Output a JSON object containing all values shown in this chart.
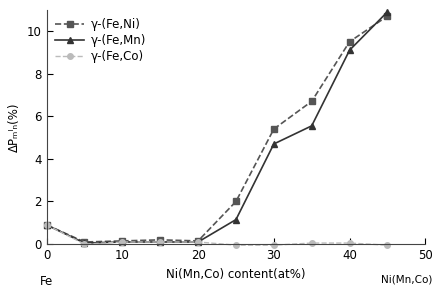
{
  "series": [
    {
      "label": "γ-(Fe,Ni)",
      "color": "#555555",
      "marker": "s",
      "linestyle": "--",
      "markersize": 5,
      "linewidth": 1.2,
      "x": [
        0,
        5,
        10,
        15,
        20,
        25,
        30,
        35,
        40,
        45
      ],
      "y": [
        0.9,
        0.1,
        0.15,
        0.2,
        0.15,
        2.0,
        5.4,
        6.7,
        9.5,
        10.7
      ]
    },
    {
      "label": "γ-(Fe,Mn)",
      "color": "#333333",
      "marker": "^",
      "linestyle": "-",
      "markersize": 5,
      "linewidth": 1.2,
      "x": [
        0,
        5,
        10,
        15,
        20,
        25,
        30,
        35,
        40,
        45
      ],
      "y": [
        0.9,
        0.05,
        0.1,
        0.1,
        0.1,
        1.15,
        4.7,
        5.55,
        9.1,
        10.9
      ]
    },
    {
      "label": "γ-(Fe,Co)",
      "color": "#bbbbbb",
      "marker": "o",
      "linestyle": "--",
      "markersize": 4,
      "linewidth": 1.0,
      "x": [
        0,
        5,
        10,
        15,
        20,
        25,
        30,
        35,
        40,
        45
      ],
      "y": [
        0.9,
        0.0,
        0.1,
        0.1,
        0.1,
        -0.05,
        -0.05,
        0.05,
        0.05,
        -0.05
      ]
    }
  ],
  "xlabel": "Ni(Mn,Co) content(at%)",
  "ylabel": "ΔPₘᴵₙ(%)",
  "xlim": [
    0,
    50
  ],
  "ylim": [
    0,
    11
  ],
  "yticks": [
    0,
    2,
    4,
    6,
    8,
    10
  ],
  "xticks": [
    0,
    10,
    20,
    30,
    40,
    50
  ],
  "fe_label": "Fe",
  "ni_label": "Ni(Mn,Co)",
  "background_color": "#ffffff",
  "legend_fontsize": 8.5,
  "axis_fontsize": 8.5,
  "tick_fontsize": 8.5,
  "spine_color": "#444444"
}
